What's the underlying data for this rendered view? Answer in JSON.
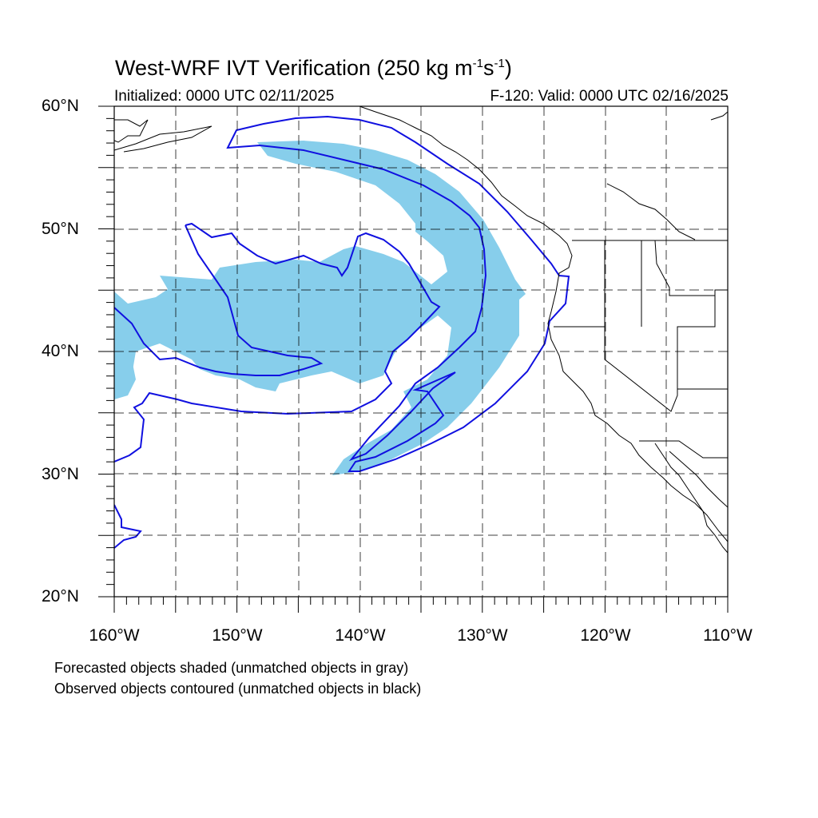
{
  "title": {
    "text_main": "West-WRF IVT Verification (250 kg m",
    "sup1": "-1",
    "text_mid": "s",
    "sup2": "-1",
    "text_end": ")"
  },
  "initialized": "Initialized: 0000 UTC 02/11/2025",
  "valid": "F-120: Valid: 0000 UTC 02/16/2025",
  "lat_labels": [
    "60°N",
    "50°N",
    "40°N",
    "30°N",
    "20°N"
  ],
  "lon_labels": [
    "160°W",
    "150°W",
    "140°W",
    "130°W",
    "120°W",
    "110°W"
  ],
  "notes": [
    "Forecasted objects shaded (unmatched objects in gray)",
    "Observed objects contoured (unmatched objects in black)"
  ],
  "colors": {
    "forecast_fill": "#87ceeb",
    "observed_contour": "#1010e0",
    "coastline": "#000000",
    "grid": "#000000"
  }
}
